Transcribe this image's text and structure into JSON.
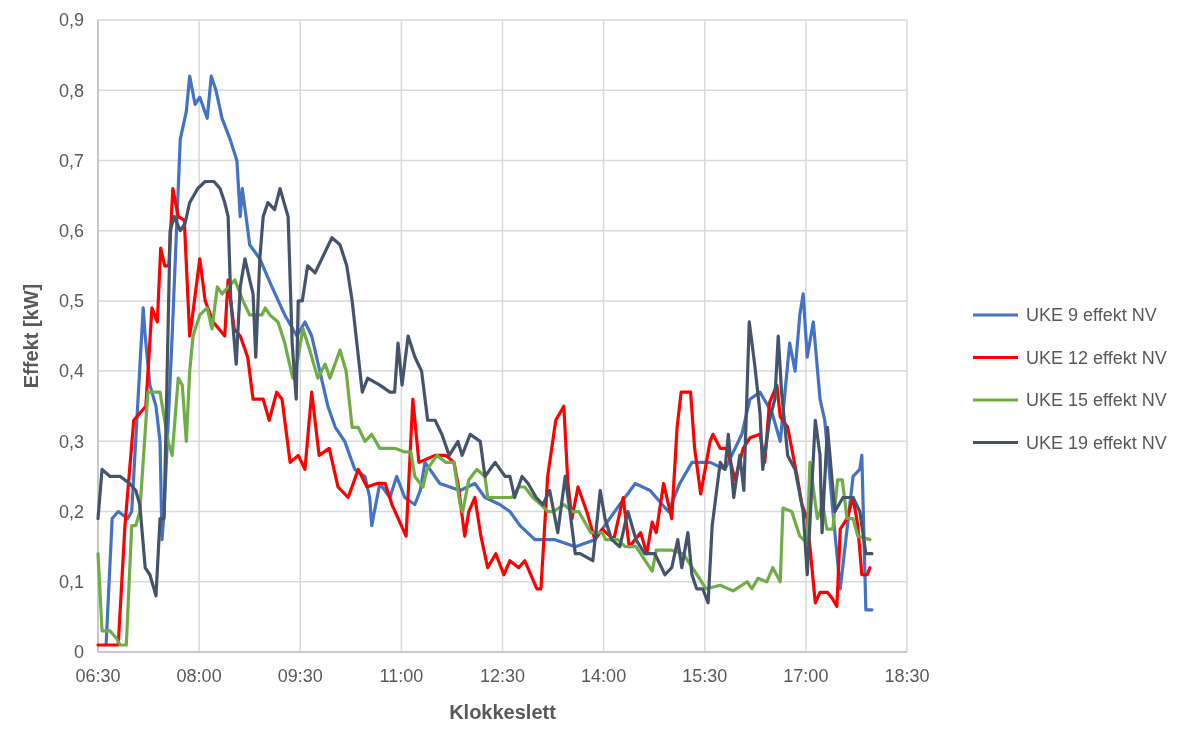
{
  "chart_data": {
    "type": "line",
    "xlabel": "Klokkeslett",
    "ylabel": "Effekt [kW]",
    "xlim": [
      6.5,
      18.5
    ],
    "xticks": [
      {
        "value": 6.5,
        "label": "06:30"
      },
      {
        "value": 8,
        "label": "08:00"
      },
      {
        "value": 9.5,
        "label": "09:30"
      },
      {
        "value": 11,
        "label": "11:00"
      },
      {
        "value": 12.5,
        "label": "12:30"
      },
      {
        "value": 14,
        "label": "14:00"
      },
      {
        "value": 15.5,
        "label": "15:30"
      },
      {
        "value": 17,
        "label": "17:00"
      },
      {
        "value": 18.5,
        "label": "18:30"
      }
    ],
    "ylim": [
      0,
      0.9
    ],
    "yticks": [
      0,
      {
        "value": 0.1,
        "label": "0,1"
      },
      {
        "value": 0.2,
        "label": "0,2"
      },
      {
        "value": 0.3,
        "label": "0,3"
      },
      {
        "value": 0.4,
        "label": "0,4"
      },
      {
        "value": 0.5,
        "label": "0,5"
      },
      {
        "value": 0.6,
        "label": "0,6"
      },
      {
        "value": 0.7,
        "label": "0,7"
      },
      {
        "value": 0.8,
        "label": "0,8"
      },
      {
        "value": 0.9,
        "label": "0,9"
      }
    ],
    "grid": true,
    "legend": "right",
    "marker": "none",
    "line_style": "solid",
    "series": [
      {
        "name": "UKE 9 effekt NV",
        "color": "#4472c4",
        "x": [
          6.62,
          6.71,
          6.8,
          6.94,
          7.0,
          7.17,
          7.2,
          7.27,
          7.36,
          7.42,
          7.45,
          7.48,
          7.6,
          7.72,
          7.81,
          7.86,
          7.94,
          8.01,
          8.12,
          8.18,
          8.25,
          8.34,
          8.46,
          8.56,
          8.61,
          8.64,
          8.71,
          8.75,
          8.9,
          9.08,
          9.27,
          9.45,
          9.57,
          9.67,
          9.79,
          9.91,
          10.02,
          10.16,
          10.31,
          10.46,
          10.53,
          10.56,
          10.68,
          10.83,
          10.93,
          11.05,
          11.2,
          11.28,
          11.35,
          11.57,
          11.87,
          12.09,
          12.24,
          12.46,
          12.61,
          12.76,
          12.98,
          13.28,
          13.58,
          13.87,
          14.09,
          14.24,
          14.47,
          14.69,
          14.96,
          15.13,
          15.31,
          15.58,
          15.8,
          16.05,
          16.17,
          16.32,
          16.5,
          16.62,
          16.76,
          16.84,
          16.91,
          16.96,
          17.02,
          17.11,
          17.21,
          17.28,
          17.42,
          17.51,
          17.7,
          17.8,
          17.83,
          17.89,
          17.98
        ],
        "values": [
          0.01,
          0.19,
          0.2,
          0.19,
          0.2,
          0.49,
          0.45,
          0.38,
          0.35,
          0.3,
          0.16,
          0.2,
          0.45,
          0.73,
          0.77,
          0.82,
          0.78,
          0.79,
          0.76,
          0.82,
          0.8,
          0.76,
          0.73,
          0.7,
          0.62,
          0.66,
          0.61,
          0.58,
          0.56,
          0.52,
          0.48,
          0.45,
          0.47,
          0.45,
          0.4,
          0.35,
          0.32,
          0.3,
          0.26,
          0.25,
          0.22,
          0.18,
          0.24,
          0.22,
          0.25,
          0.22,
          0.21,
          0.23,
          0.27,
          0.24,
          0.23,
          0.24,
          0.22,
          0.21,
          0.2,
          0.18,
          0.16,
          0.16,
          0.15,
          0.16,
          0.19,
          0.21,
          0.24,
          0.23,
          0.2,
          0.24,
          0.27,
          0.27,
          0.26,
          0.31,
          0.36,
          0.37,
          0.34,
          0.3,
          0.44,
          0.4,
          0.48,
          0.51,
          0.42,
          0.47,
          0.36,
          0.33,
          0.18,
          0.09,
          0.25,
          0.26,
          0.28,
          0.06,
          0.06
        ]
      },
      {
        "name": "UKE 12 effekt NV",
        "color": "#ff0000",
        "x": [
          6.5,
          6.8,
          6.9,
          7.03,
          7.21,
          7.3,
          7.38,
          7.43,
          7.49,
          7.55,
          7.61,
          7.69,
          7.78,
          7.86,
          7.89,
          8.01,
          8.09,
          8.21,
          8.38,
          8.43,
          8.52,
          8.61,
          8.72,
          8.8,
          8.95,
          9.04,
          9.15,
          9.23,
          9.35,
          9.47,
          9.57,
          9.67,
          9.78,
          9.93,
          10.06,
          10.21,
          10.36,
          10.49,
          10.64,
          10.76,
          10.86,
          11.07,
          11.17,
          11.26,
          11.5,
          11.66,
          11.78,
          11.84,
          11.94,
          12.0,
          12.09,
          12.18,
          12.28,
          12.4,
          12.52,
          12.61,
          12.74,
          12.83,
          13.01,
          13.07,
          13.17,
          13.29,
          13.41,
          13.47,
          13.53,
          13.62,
          13.75,
          13.87,
          13.98,
          14.15,
          14.29,
          14.38,
          14.55,
          14.64,
          14.72,
          14.78,
          14.89,
          15.01,
          15.09,
          15.15,
          15.29,
          15.35,
          15.44,
          15.58,
          15.62,
          15.73,
          15.83,
          15.95,
          16.07,
          16.17,
          16.32,
          16.39,
          16.46,
          16.57,
          16.62,
          16.73,
          16.87,
          16.94,
          17.02,
          17.14,
          17.21,
          17.32,
          17.4,
          17.46,
          17.51,
          17.61,
          17.7,
          17.77,
          17.83,
          17.91,
          17.95
        ],
        "values": [
          0.01,
          0.01,
          0.18,
          0.33,
          0.35,
          0.49,
          0.47,
          0.575,
          0.55,
          0.55,
          0.66,
          0.62,
          0.615,
          0.45,
          0.47,
          0.56,
          0.5,
          0.47,
          0.45,
          0.53,
          0.46,
          0.45,
          0.42,
          0.36,
          0.36,
          0.33,
          0.37,
          0.36,
          0.27,
          0.28,
          0.26,
          0.37,
          0.28,
          0.29,
          0.235,
          0.22,
          0.26,
          0.235,
          0.24,
          0.24,
          0.21,
          0.165,
          0.36,
          0.27,
          0.28,
          0.28,
          0.27,
          0.24,
          0.165,
          0.2,
          0.22,
          0.165,
          0.12,
          0.14,
          0.11,
          0.13,
          0.12,
          0.13,
          0.09,
          0.09,
          0.25,
          0.33,
          0.35,
          0.24,
          0.19,
          0.235,
          0.2,
          0.16,
          0.175,
          0.16,
          0.22,
          0.15,
          0.17,
          0.14,
          0.185,
          0.17,
          0.24,
          0.19,
          0.32,
          0.37,
          0.37,
          0.29,
          0.225,
          0.3,
          0.31,
          0.29,
          0.29,
          0.245,
          0.29,
          0.305,
          0.31,
          0.27,
          0.355,
          0.38,
          0.335,
          0.32,
          0.25,
          0.21,
          0.19,
          0.07,
          0.085,
          0.085,
          0.075,
          0.065,
          0.175,
          0.19,
          0.22,
          0.18,
          0.11,
          0.11,
          0.12
        ]
      },
      {
        "name": "UKE 15 effekt NV",
        "color": "#70ad47",
        "x": [
          6.5,
          6.56,
          6.68,
          6.77,
          6.83,
          6.92,
          7.0,
          7.06,
          7.12,
          7.24,
          7.42,
          7.54,
          7.6,
          7.69,
          7.75,
          7.81,
          7.86,
          7.91,
          8.01,
          8.12,
          8.19,
          8.27,
          8.34,
          8.53,
          8.65,
          8.75,
          8.93,
          8.98,
          9.05,
          9.17,
          9.27,
          9.39,
          9.45,
          9.54,
          9.64,
          9.76,
          9.87,
          9.94,
          10.09,
          10.18,
          10.27,
          10.36,
          10.46,
          10.56,
          10.68,
          10.9,
          11.04,
          11.14,
          11.2,
          11.32,
          11.38,
          11.53,
          11.66,
          11.78,
          11.87,
          11.91,
          12.0,
          12.12,
          12.24,
          12.28,
          12.46,
          12.64,
          12.74,
          12.83,
          12.95,
          13.07,
          13.17,
          13.26,
          13.41,
          13.53,
          13.63,
          13.81,
          13.98,
          14.03,
          14.21,
          14.32,
          14.48,
          14.72,
          14.78,
          15.01,
          15.18,
          15.35,
          15.52,
          15.73,
          15.92,
          16.13,
          16.2,
          16.29,
          16.42,
          16.51,
          16.62,
          16.66,
          16.79,
          16.91,
          17.02,
          17.06,
          17.17,
          17.25,
          17.31,
          17.4,
          17.47,
          17.54,
          17.61,
          17.7,
          17.77,
          17.95
        ],
        "values": [
          0.14,
          0.03,
          0.03,
          0.02,
          0.01,
          0.01,
          0.18,
          0.18,
          0.2,
          0.37,
          0.37,
          0.3,
          0.28,
          0.39,
          0.38,
          0.3,
          0.4,
          0.45,
          0.48,
          0.49,
          0.46,
          0.52,
          0.51,
          0.53,
          0.5,
          0.48,
          0.48,
          0.49,
          0.48,
          0.47,
          0.44,
          0.39,
          0.41,
          0.46,
          0.43,
          0.39,
          0.41,
          0.39,
          0.43,
          0.4,
          0.32,
          0.32,
          0.3,
          0.31,
          0.29,
          0.29,
          0.285,
          0.285,
          0.25,
          0.235,
          0.26,
          0.28,
          0.27,
          0.27,
          0.21,
          0.2,
          0.245,
          0.26,
          0.25,
          0.22,
          0.22,
          0.22,
          0.235,
          0.235,
          0.22,
          0.21,
          0.2,
          0.2,
          0.21,
          0.2,
          0.2,
          0.17,
          0.17,
          0.16,
          0.16,
          0.15,
          0.15,
          0.115,
          0.145,
          0.145,
          0.14,
          0.115,
          0.09,
          0.095,
          0.087,
          0.1,
          0.09,
          0.105,
          0.1,
          0.12,
          0.1,
          0.205,
          0.2,
          0.165,
          0.155,
          0.27,
          0.19,
          0.21,
          0.175,
          0.175,
          0.245,
          0.245,
          0.19,
          0.19,
          0.165,
          0.16
        ]
      },
      {
        "name": "UKE 19 effekt NV",
        "color": "#44546a",
        "x": [
          6.5,
          6.56,
          6.68,
          6.83,
          6.97,
          7.06,
          7.12,
          7.2,
          7.27,
          7.36,
          7.42,
          7.48,
          7.57,
          7.63,
          7.72,
          7.79,
          7.86,
          7.98,
          8.09,
          8.22,
          8.31,
          8.38,
          8.43,
          8.47,
          8.55,
          8.61,
          8.68,
          8.75,
          8.8,
          8.84,
          8.9,
          8.95,
          9.02,
          9.12,
          9.2,
          9.26,
          9.32,
          9.38,
          9.44,
          9.47,
          9.53,
          9.61,
          9.72,
          9.97,
          10.09,
          10.19,
          10.27,
          10.42,
          10.5,
          10.68,
          10.83,
          10.9,
          10.95,
          11.01,
          11.1,
          11.2,
          11.3,
          11.39,
          11.5,
          11.6,
          11.71,
          11.84,
          11.9,
          12.02,
          12.17,
          12.24,
          12.39,
          12.54,
          12.61,
          12.68,
          12.79,
          12.88,
          13.0,
          13.1,
          13.2,
          13.32,
          13.43,
          13.5,
          13.58,
          13.65,
          13.84,
          13.95,
          14.02,
          14.12,
          14.24,
          14.36,
          14.48,
          14.61,
          14.76,
          14.91,
          15.01,
          15.1,
          15.16,
          15.25,
          15.31,
          15.38,
          15.47,
          15.55,
          15.61,
          15.73,
          15.8,
          15.85,
          15.93,
          16.02,
          16.08,
          16.16,
          16.24,
          16.32,
          16.36,
          16.46,
          16.54,
          16.59,
          16.64,
          16.73,
          16.84,
          16.96,
          17.02,
          17.14,
          17.21,
          17.24,
          17.32,
          17.43,
          17.55,
          17.7,
          17.8,
          17.89,
          17.98
        ],
        "values": [
          0.19,
          0.26,
          0.25,
          0.25,
          0.24,
          0.23,
          0.21,
          0.12,
          0.11,
          0.08,
          0.19,
          0.19,
          0.6,
          0.62,
          0.6,
          0.61,
          0.64,
          0.66,
          0.67,
          0.67,
          0.66,
          0.64,
          0.62,
          0.5,
          0.41,
          0.52,
          0.56,
          0.53,
          0.51,
          0.42,
          0.56,
          0.62,
          0.64,
          0.63,
          0.66,
          0.64,
          0.62,
          0.44,
          0.36,
          0.5,
          0.5,
          0.55,
          0.54,
          0.59,
          0.58,
          0.55,
          0.5,
          0.37,
          0.39,
          0.38,
          0.37,
          0.37,
          0.44,
          0.38,
          0.45,
          0.42,
          0.4,
          0.33,
          0.33,
          0.31,
          0.28,
          0.3,
          0.28,
          0.31,
          0.3,
          0.25,
          0.27,
          0.25,
          0.25,
          0.22,
          0.25,
          0.24,
          0.22,
          0.21,
          0.23,
          0.17,
          0.25,
          0.2,
          0.14,
          0.14,
          0.13,
          0.23,
          0.19,
          0.16,
          0.15,
          0.2,
          0.16,
          0.14,
          0.14,
          0.11,
          0.12,
          0.16,
          0.12,
          0.17,
          0.11,
          0.09,
          0.09,
          0.07,
          0.18,
          0.27,
          0.26,
          0.31,
          0.22,
          0.28,
          0.23,
          0.47,
          0.41,
          0.34,
          0.26,
          0.33,
          0.36,
          0.45,
          0.37,
          0.28,
          0.26,
          0.2,
          0.11,
          0.33,
          0.28,
          0.17,
          0.32,
          0.2,
          0.22,
          0.22,
          0.2,
          0.14,
          0.14
        ]
      }
    ]
  }
}
